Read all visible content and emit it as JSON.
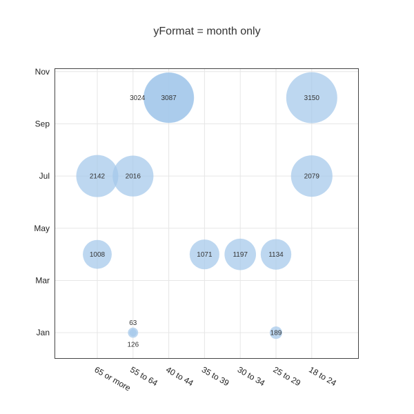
{
  "chart_data": {
    "type": "scatter",
    "title": "yFormat = month only",
    "xlabel": "",
    "ylabel": "",
    "x_categories": [
      "65 or more",
      "55 to 64",
      "40 to 44",
      "35 to 39",
      "30 to 34",
      "25 to 29",
      "18 to 24"
    ],
    "y_ticks": [
      "Jan",
      "Mar",
      "May",
      "Jul",
      "Sep",
      "Nov"
    ],
    "y_tick_values": [
      1.0,
      3.0,
      5.0,
      7.0,
      9.0,
      11.0
    ],
    "ylim": [
      0.0,
      11.1
    ],
    "grid": true,
    "colors": {
      "bubble": "#a4c8ea",
      "bubble_dark": "#8ab8e2"
    },
    "points": [
      {
        "x": "55 to 64",
        "y": 1.0,
        "value": 63,
        "label_pos": "above"
      },
      {
        "x": "55 to 64",
        "y": 1.0,
        "value": 126,
        "label_pos": "below"
      },
      {
        "x": "25 to 29",
        "y": 1.0,
        "value": 189,
        "label_pos": "center"
      },
      {
        "x": "65 or more",
        "y": 4.0,
        "value": 1008,
        "label_pos": "center"
      },
      {
        "x": "35 to 39",
        "y": 4.0,
        "value": 1071,
        "label_pos": "center"
      },
      {
        "x": "25 to 29",
        "y": 4.0,
        "value": 1134,
        "label_pos": "center"
      },
      {
        "x": "30 to 34",
        "y": 4.0,
        "value": 1197,
        "label_pos": "center"
      },
      {
        "x": "65 or more",
        "y": 7.0,
        "value": 2142,
        "label_pos": "center"
      },
      {
        "x": "55 to 64",
        "y": 7.0,
        "value": 2016,
        "label_pos": "center"
      },
      {
        "x": "18 to 24",
        "y": 7.0,
        "value": 2079,
        "label_pos": "center"
      },
      {
        "x": "40 to 44",
        "y": 10.0,
        "value": 3024,
        "label_pos": "left"
      },
      {
        "x": "40 to 44",
        "y": 10.0,
        "value": 3087,
        "label_pos": "center"
      },
      {
        "x": "18 to 24",
        "y": 10.0,
        "value": 3150,
        "label_pos": "center"
      }
    ]
  }
}
